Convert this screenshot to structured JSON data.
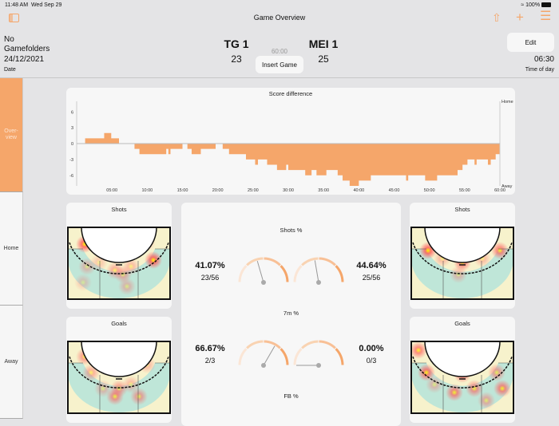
{
  "status_bar": {
    "time": "11:48 AM",
    "date": "Wed Sep 29",
    "battery": "100%"
  },
  "nav": {
    "title": "Game Overview",
    "icons": [
      "sidebar-toggle-icon",
      "share-icon",
      "plus-icon",
      "menu-icon"
    ]
  },
  "header": {
    "folder": "No Gamefolders",
    "date_value": "24/12/2021",
    "date_label": "Date",
    "home_team": "TG 1",
    "home_score": "23",
    "away_team": "MEI 1",
    "away_score": "25",
    "game_time": "60:00",
    "insert_button": "Insert Game",
    "edit_button": "Edit",
    "time_value": "06:30",
    "time_label": "Time of day"
  },
  "sidebar": {
    "items": [
      {
        "label": "Over-view",
        "active": true
      },
      {
        "label": "Home"
      },
      {
        "label": "Away"
      }
    ]
  },
  "accent": "#f5a66a",
  "chart_data": {
    "type": "area",
    "title": "Score difference",
    "step": true,
    "xlim": [
      0,
      60
    ],
    "ylim": [
      -8,
      8
    ],
    "x_ticks": [
      "05:00",
      "10:00",
      "15:00",
      "20:00",
      "25:00",
      "30:00",
      "35:00",
      "40:00",
      "45:00",
      "50:00",
      "55:00",
      "60:00"
    ],
    "y_ticks": [
      6,
      3,
      0,
      -3,
      -6
    ],
    "right_labels": {
      "top": "Home",
      "bottom": "Away"
    },
    "color": "#f5a66a",
    "steps": [
      [
        0,
        0
      ],
      [
        1.2,
        1
      ],
      [
        3.9,
        2
      ],
      [
        4.9,
        1
      ],
      [
        6.0,
        0
      ],
      [
        8.2,
        -1
      ],
      [
        8.9,
        -2
      ],
      [
        12.7,
        -1
      ],
      [
        13.0,
        -2
      ],
      [
        13.3,
        -1
      ],
      [
        15.0,
        0
      ],
      [
        15.7,
        -1
      ],
      [
        16.3,
        -2
      ],
      [
        17.6,
        -1
      ],
      [
        19.7,
        0
      ],
      [
        20.7,
        -1
      ],
      [
        21.6,
        -2
      ],
      [
        24.0,
        -3
      ],
      [
        25.3,
        -4
      ],
      [
        25.7,
        -3
      ],
      [
        27.0,
        -4
      ],
      [
        28.4,
        -5
      ],
      [
        29.7,
        -4
      ],
      [
        30.0,
        -5
      ],
      [
        32.4,
        -6
      ],
      [
        33.3,
        -5
      ],
      [
        34.0,
        -6
      ],
      [
        35.4,
        -5
      ],
      [
        37.0,
        -6
      ],
      [
        37.7,
        -7
      ],
      [
        38.7,
        -8
      ],
      [
        40.0,
        -7
      ],
      [
        41.7,
        -6
      ],
      [
        46.7,
        -7
      ],
      [
        47.0,
        -6
      ],
      [
        49.4,
        -7
      ],
      [
        51.1,
        -6
      ],
      [
        54.0,
        -5
      ],
      [
        54.7,
        -4
      ],
      [
        55.4,
        -3
      ],
      [
        56.4,
        -4
      ],
      [
        56.7,
        -3
      ],
      [
        58.3,
        -4
      ],
      [
        58.7,
        -3
      ],
      [
        59.4,
        -2
      ],
      [
        60,
        -2
      ]
    ]
  },
  "heatmaps": {
    "home_shots": "Shots",
    "home_goals": "Goals",
    "away_shots": "Shots",
    "away_goals": "Goals"
  },
  "stats": [
    {
      "title": "Shots %",
      "home": {
        "pct": "41.07%",
        "frac": "23/56",
        "value": 41.07
      },
      "away": {
        "pct": "44.64%",
        "frac": "25/56",
        "value": 44.64
      }
    },
    {
      "title": "7m %",
      "home": {
        "pct": "66.67%",
        "frac": "2/3",
        "value": 66.67
      },
      "away": {
        "pct": "0.00%",
        "frac": "0/3",
        "value": 0
      }
    },
    {
      "title": "FB %"
    }
  ]
}
